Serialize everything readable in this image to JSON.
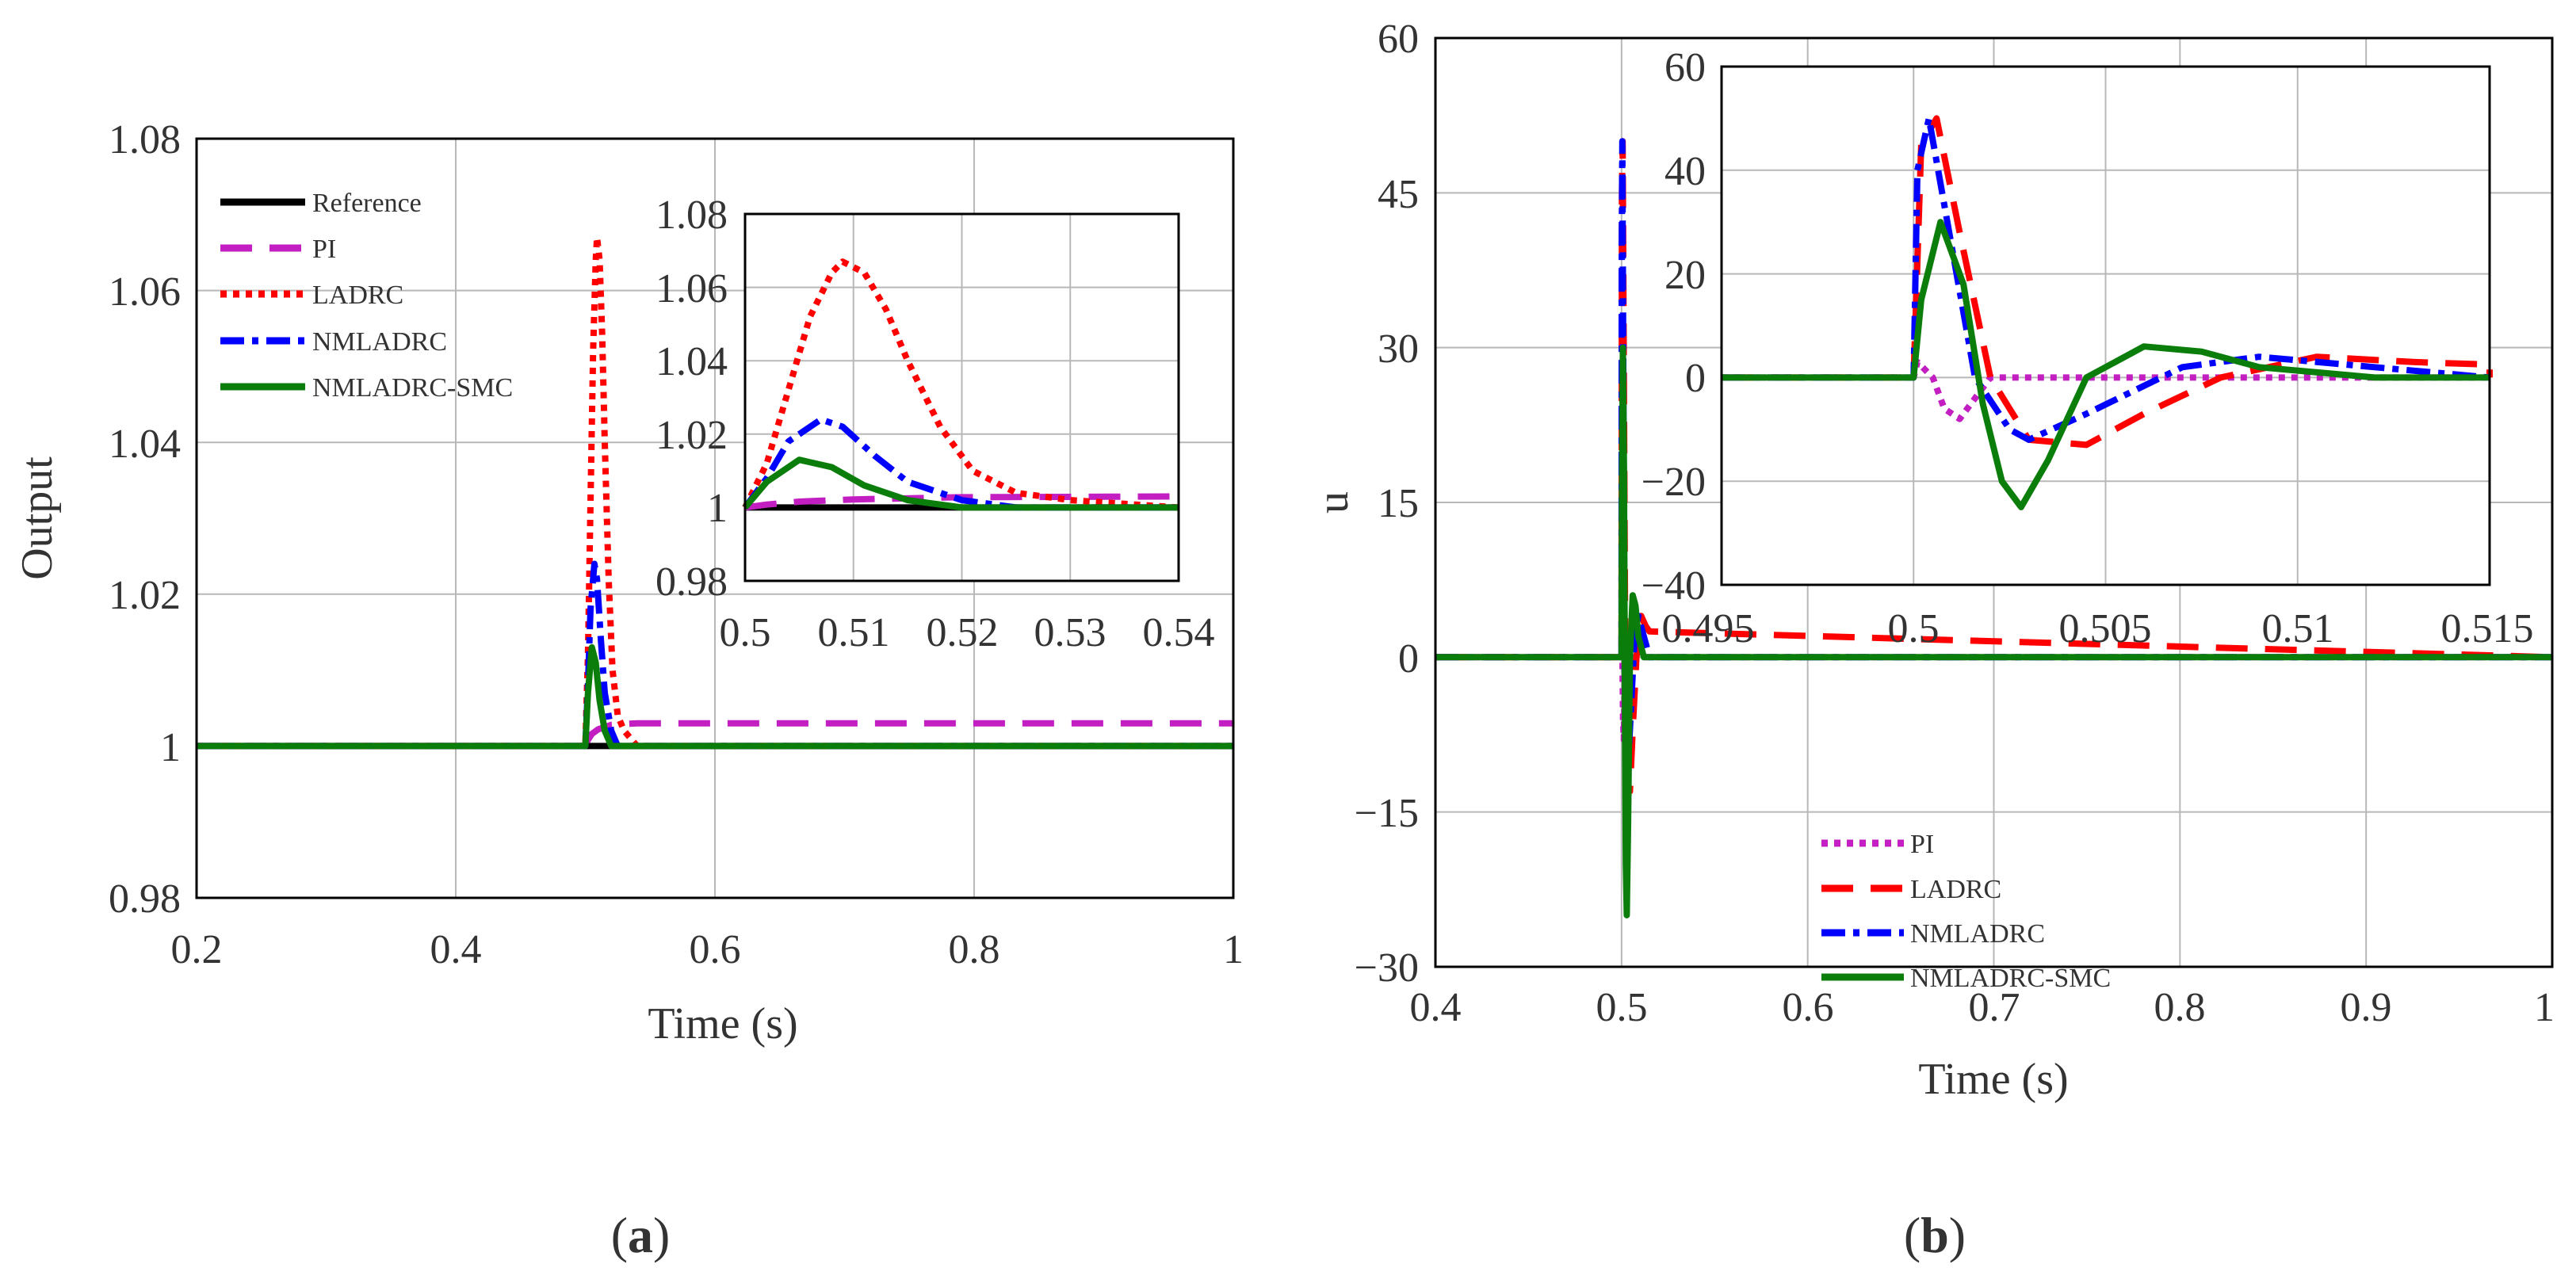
{
  "chart_data": [
    {
      "id": "a",
      "type": "line",
      "caption": {
        "open": "(",
        "letter": "a",
        "close": ")"
      },
      "xlabel": "Time (s)",
      "ylabel": "Output",
      "xlim": [
        0.2,
        1.0
      ],
      "ylim": [
        0.98,
        1.08
      ],
      "xticks": [
        "0.2",
        "0.4",
        "0.6",
        "0.8",
        "1"
      ],
      "yticks": [
        "0.98",
        "1",
        "1.02",
        "1.04",
        "1.06",
        "1.08"
      ],
      "grid": true,
      "legend": {
        "position": "top-left",
        "entries": [
          "Reference",
          "PI",
          "LADRC",
          "NMLADRC",
          "NMLADRC-SMC"
        ]
      },
      "series": [
        {
          "name": "Reference",
          "color": "#000000",
          "style": "solid",
          "x": [
            0.2,
            0.5,
            0.5,
            1.0
          ],
          "y": [
            1.0,
            1.0,
            1.0,
            1.0
          ]
        },
        {
          "name": "PI",
          "color": "#c21ec2",
          "style": "dashed",
          "x": [
            0.2,
            0.5,
            0.502,
            0.505,
            0.51,
            0.52,
            0.54,
            1.0
          ],
          "y": [
            1.0,
            1.0,
            1.0008,
            1.0016,
            1.0022,
            1.0028,
            1.003,
            1.003
          ]
        },
        {
          "name": "LADRC",
          "color": "#ff0000",
          "style": "dotted",
          "x": [
            0.2,
            0.5,
            0.502,
            0.504,
            0.506,
            0.508,
            0.509,
            0.511,
            0.513,
            0.515,
            0.518,
            0.521,
            0.525,
            0.53,
            0.54,
            1.0
          ],
          "y": [
            1.0,
            1.0,
            1.012,
            1.032,
            1.052,
            1.064,
            1.067,
            1.064,
            1.054,
            1.04,
            1.022,
            1.01,
            1.004,
            1.002,
            1.0,
            1.0
          ]
        },
        {
          "name": "NMLADRC",
          "color": "#0000ff",
          "style": "dashdot",
          "x": [
            0.2,
            0.5,
            0.502,
            0.504,
            0.507,
            0.509,
            0.512,
            0.515,
            0.52,
            0.525,
            0.54,
            1.0
          ],
          "y": [
            1.0,
            1.0,
            1.008,
            1.018,
            1.024,
            1.022,
            1.014,
            1.007,
            1.002,
            1.0,
            1.0,
            1.0
          ]
        },
        {
          "name": "NMLADRC-SMC",
          "color": "#0a7d0a",
          "style": "solid",
          "x": [
            0.2,
            0.5,
            0.502,
            0.505,
            0.508,
            0.511,
            0.515,
            0.52,
            0.54,
            1.0
          ],
          "y": [
            1.0,
            1.0,
            1.007,
            1.013,
            1.011,
            1.006,
            1.002,
            1.0,
            1.0,
            1.0
          ]
        }
      ],
      "inset": {
        "xlim": [
          0.5,
          0.54
        ],
        "ylim": [
          0.98,
          1.08
        ],
        "xticks": [
          "0.5",
          "0.51",
          "0.52",
          "0.53",
          "0.54"
        ],
        "yticks": [
          "0.98",
          "1",
          "1.02",
          "1.04",
          "1.06",
          "1.08"
        ]
      }
    },
    {
      "id": "b",
      "type": "line",
      "caption": {
        "open": "(",
        "letter": "b",
        "close": ")"
      },
      "xlabel": "Time (s)",
      "ylabel": "u",
      "xlim": [
        0.4,
        1.0
      ],
      "ylim": [
        -30,
        60
      ],
      "xticks": [
        "0.4",
        "0.5",
        "0.6",
        "0.7",
        "0.8",
        "0.9",
        "1"
      ],
      "yticks": [
        "−30",
        "−15",
        "0",
        "15",
        "30",
        "45",
        "60"
      ],
      "grid": true,
      "legend": {
        "position": "bottom-center",
        "entries": [
          "PI",
          "LADRC",
          "NMLADRC",
          "NMLADRC-SMC"
        ]
      },
      "series": [
        {
          "name": "PI",
          "color": "#c21ec2",
          "style": "dotted",
          "x": [
            0.4,
            0.5,
            0.5001,
            0.5005,
            0.5008,
            0.5012,
            0.502,
            0.515,
            1.0
          ],
          "y": [
            0,
            0,
            3,
            0,
            -6,
            -8,
            0,
            0,
            0
          ]
        },
        {
          "name": "LADRC",
          "color": "#ff0000",
          "style": "dashed",
          "x": [
            0.4,
            0.5,
            0.5002,
            0.5006,
            0.5012,
            0.502,
            0.503,
            0.5045,
            0.506,
            0.508,
            0.5105,
            0.513,
            0.515,
            1.0
          ],
          "y": [
            0,
            0,
            45,
            50,
            28,
            0,
            -12,
            -13,
            -7,
            0,
            4,
            3,
            2.5,
            0
          ]
        },
        {
          "name": "NMLADRC",
          "color": "#0000ff",
          "style": "dashdot",
          "x": [
            0.4,
            0.5,
            0.5001,
            0.5004,
            0.501,
            0.5016,
            0.5025,
            0.503,
            0.5045,
            0.507,
            0.509,
            0.512,
            0.515,
            1.0
          ],
          "y": [
            0,
            0,
            40,
            50,
            25,
            0,
            -10,
            -12,
            -7,
            2,
            4,
            2,
            0,
            0
          ]
        },
        {
          "name": "NMLADRC-SMC",
          "color": "#0a7d0a",
          "style": "solid",
          "x": [
            0.4,
            0.5,
            0.5002,
            0.5007,
            0.5013,
            0.5018,
            0.5023,
            0.5028,
            0.5035,
            0.5045,
            0.506,
            0.5075,
            0.509,
            0.512,
            0.515,
            1.0
          ],
          "y": [
            0,
            0,
            15,
            30,
            18,
            -5,
            -20,
            -25,
            -16,
            0,
            6,
            5,
            2,
            0,
            0,
            0
          ]
        }
      ],
      "inset": {
        "xlim": [
          0.495,
          0.515
        ],
        "ylim": [
          -40,
          60
        ],
        "xticks": [
          "0.495",
          "0.5",
          "0.505",
          "0.51",
          "0.515"
        ],
        "yticks": [
          "−40",
          "−20",
          "0",
          "20",
          "40",
          "60"
        ]
      }
    }
  ]
}
